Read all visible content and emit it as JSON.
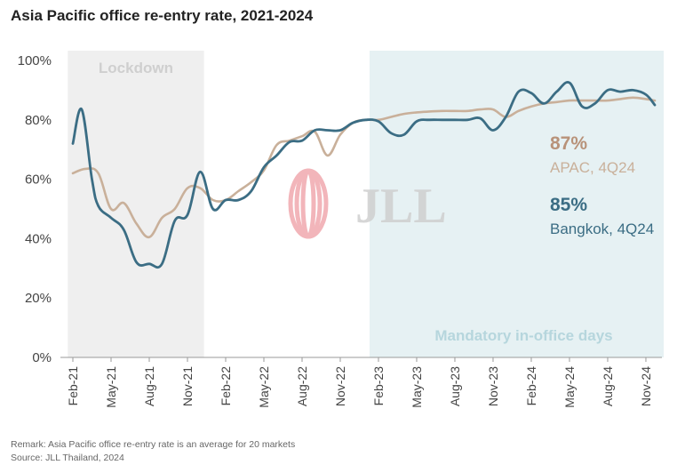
{
  "title": "Asia Pacific office re-entry rate, 2021-2024",
  "footer": {
    "remark": "Remark: Asia Pacific office re-entry rate is an average for 20 markets",
    "source": "Source: JLL Thailand, 2024"
  },
  "logo": {
    "text": "JLL"
  },
  "colors": {
    "apac": "#c9b09a",
    "bangkok": "#3b6d84",
    "lockdown_band": "#efefef",
    "mandatory_band": "#e6f1f3",
    "lockdown_text": "#cfcfcf",
    "mandatory_text": "#b6d6dd",
    "apac_value": "#b89279",
    "logo_mark": "#f0a9ae"
  },
  "chart_data": {
    "type": "line",
    "title": "Asia Pacific office re-entry rate, 2021-2024",
    "xlabel": "",
    "ylabel": "",
    "ylim": [
      0,
      100
    ],
    "yticks": [
      "0%",
      "20%",
      "40%",
      "60%",
      "80%",
      "100%"
    ],
    "x_range": [
      0,
      46
    ],
    "x_tick_positions": [
      0,
      3,
      6,
      9,
      12,
      15,
      18,
      21,
      24,
      27,
      30,
      33,
      36,
      39,
      42,
      45
    ],
    "x_tick_labels": [
      "Feb-21",
      "May-21",
      "Aug-21",
      "Nov-21",
      "Feb-22",
      "May-22",
      "Aug-22",
      "Nov-22",
      "Feb-23",
      "May-23",
      "Aug-23",
      "Nov-23",
      "Feb-24",
      "May-24",
      "Aug-24",
      "Nov-24"
    ],
    "bands": [
      {
        "name": "lockdown",
        "label": "Lockdown",
        "from": -0.4,
        "to": 10.3
      },
      {
        "name": "mandatory",
        "label": "Mandatory in-office days",
        "from": 23.3,
        "to": 46.4
      }
    ],
    "series": [
      {
        "name": "APAC",
        "x": [
          0,
          1,
          2,
          3,
          4,
          5,
          6,
          7,
          8,
          9,
          10,
          11,
          12,
          13,
          14,
          15,
          16,
          17,
          18,
          19,
          20,
          21,
          22,
          23,
          24,
          25,
          26,
          27,
          28,
          29,
          30,
          31,
          32,
          33,
          34,
          35,
          36,
          37,
          38,
          39,
          40,
          41,
          42,
          43,
          44,
          45,
          45.7
        ],
        "values": [
          62,
          63.5,
          62,
          50,
          52,
          45,
          40.5,
          47,
          50,
          57,
          57,
          53,
          53,
          56,
          59,
          63,
          71.5,
          73,
          74.5,
          76,
          68,
          75,
          79,
          80,
          80,
          81,
          82,
          82.5,
          82.8,
          83,
          83,
          83,
          83.5,
          83.5,
          81,
          83,
          84.5,
          85.5,
          86,
          86.5,
          86.5,
          86.5,
          86.5,
          87,
          87.5,
          87,
          86.5
        ]
      },
      {
        "name": "Bangkok",
        "x": [
          0,
          0.7,
          1.5,
          2,
          3,
          4,
          5,
          6,
          7,
          8,
          9,
          10,
          11,
          12,
          13,
          14,
          15,
          16,
          17,
          18,
          19,
          20,
          21,
          22,
          23,
          24,
          25,
          26,
          27,
          28,
          29,
          30,
          31,
          32,
          33,
          34,
          35,
          36,
          37,
          38,
          39,
          40,
          41,
          42,
          43,
          44,
          45,
          45.7
        ],
        "values": [
          72,
          83.5,
          60,
          51,
          47,
          43,
          32,
          31.5,
          31.5,
          46,
          48,
          62.5,
          50,
          53,
          53,
          56,
          64,
          68,
          72.5,
          73,
          76.5,
          76.5,
          76.5,
          79,
          80,
          79.5,
          75.5,
          75,
          79.5,
          80,
          80,
          80,
          80,
          80.5,
          76.5,
          81,
          89.5,
          89,
          85.5,
          89.5,
          92.5,
          84.5,
          85.5,
          90,
          89.5,
          90,
          88.5,
          85
        ]
      }
    ],
    "annotations": [
      {
        "series": "APAC",
        "value": "87%",
        "label": "APAC, 4Q24"
      },
      {
        "series": "Bangkok",
        "value": "85%",
        "label": "Bangkok, 4Q24"
      }
    ]
  }
}
